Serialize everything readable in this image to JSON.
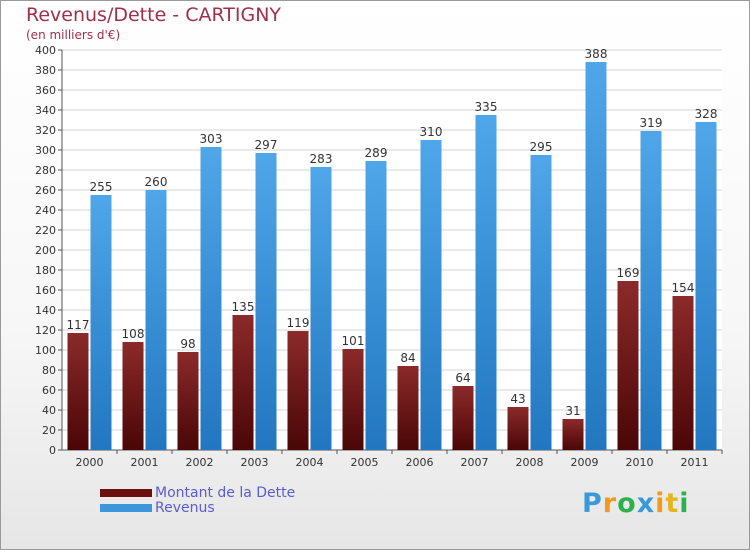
{
  "title": "Revenus/Dette - CARTIGNY",
  "subtitle": "(en milliers d'€)",
  "chart_data": {
    "type": "bar",
    "categories": [
      "2000",
      "2001",
      "2002",
      "2003",
      "2004",
      "2005",
      "2006",
      "2007",
      "2008",
      "2009",
      "2010",
      "2011"
    ],
    "series": [
      {
        "name": "Montant de la Dette",
        "values": [
          117,
          108,
          98,
          135,
          119,
          101,
          84,
          64,
          43,
          31,
          169,
          154
        ],
        "color": "#7a1e1e"
      },
      {
        "name": "Revenus",
        "values": [
          255,
          260,
          303,
          297,
          283,
          289,
          310,
          335,
          295,
          388,
          319,
          328
        ],
        "color": "#3d96dc"
      }
    ],
    "ylim": [
      0,
      400
    ],
    "yticks": [
      0,
      20,
      40,
      60,
      80,
      100,
      120,
      140,
      160,
      180,
      200,
      220,
      240,
      260,
      280,
      300,
      320,
      340,
      360,
      380,
      400
    ],
    "grid": true,
    "legend_position": "bottom-left"
  },
  "legend": [
    {
      "label": "Montant de la Dette",
      "color": "#6b0f0f",
      "text_color": "#5b5bd6"
    },
    {
      "label": "Revenus",
      "color": "#3d96dc",
      "text_color": "#5b5bd6"
    }
  ],
  "logo": {
    "letters": [
      "P",
      "r",
      "o",
      "x",
      "i",
      "t",
      "i"
    ],
    "colors": [
      "#3a9ad9",
      "#f29a1e",
      "#2bb24c",
      "#3a9ad9",
      "#f29a1e",
      "#e8b51e",
      "#2bb24c"
    ]
  }
}
